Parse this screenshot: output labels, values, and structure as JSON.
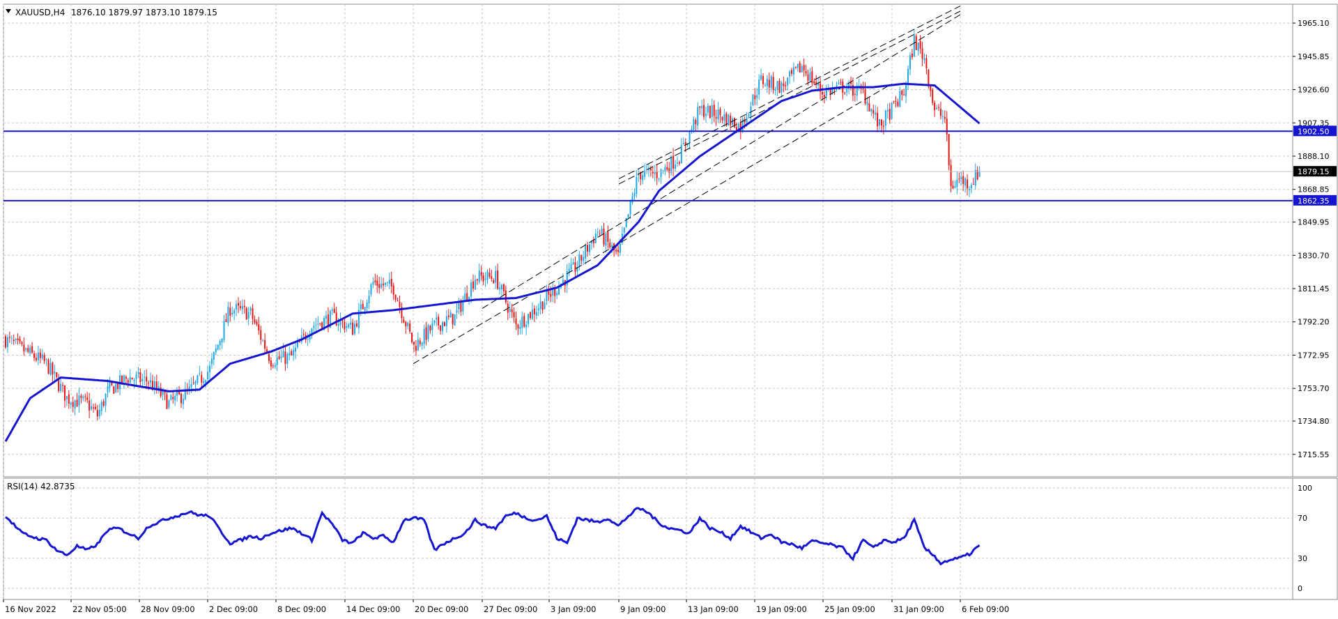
{
  "header": {
    "symbol_label": "XAUUSD,H4",
    "ohlc_label": "1876.10 1879.97 1873.10 1879.15"
  },
  "rsi_panel": {
    "label": "RSI(14) 42.8735"
  },
  "colors": {
    "bull": "#1ea7e8",
    "bear": "#ee1111",
    "ma": "#1515d0",
    "hline": "#1515d0",
    "grid": "#c7c7c7",
    "channel": "#000000"
  },
  "chart_data": [
    {
      "type": "candlestick",
      "symbol": "XAUUSD",
      "timeframe": "H4",
      "ylim": [
        1709.0,
        1972.0
      ],
      "y_ticks": [
        1965.1,
        1945.85,
        1926.6,
        1907.35,
        1888.1,
        1868.85,
        1849.95,
        1830.7,
        1811.45,
        1792.2,
        1772.95,
        1753.7,
        1734.8,
        1715.55
      ],
      "x_ticks": [
        "16 Nov 2022",
        "22 Nov 05:00",
        "28 Nov 09:00",
        "2 Dec 09:00",
        "8 Dec 09:00",
        "14 Dec 09:00",
        "20 Dec 09:00",
        "27 Dec 09:00",
        "3 Jan 09:00",
        "9 Jan 09:00",
        "13 Jan 09:00",
        "19 Jan 09:00",
        "25 Jan 09:00",
        "31 Jan 09:00",
        "6 Feb 09:00"
      ],
      "price_labels": {
        "current": 1879.15,
        "levels": [
          1902.5,
          1862.35
        ]
      },
      "horizontal_lines": [
        1902.5,
        1862.35
      ],
      "moving_average_anchors": [
        [
          0,
          1723
        ],
        [
          12,
          1748
        ],
        [
          27,
          1760
        ],
        [
          50,
          1758
        ],
        [
          80,
          1752
        ],
        [
          95,
          1753
        ],
        [
          110,
          1768
        ],
        [
          130,
          1775
        ],
        [
          145,
          1782
        ],
        [
          170,
          1797
        ],
        [
          190,
          1799
        ],
        [
          230,
          1805
        ],
        [
          250,
          1806
        ],
        [
          270,
          1812
        ],
        [
          290,
          1825
        ],
        [
          310,
          1850
        ],
        [
          320,
          1868
        ],
        [
          340,
          1888
        ],
        [
          360,
          1904
        ],
        [
          380,
          1920
        ],
        [
          395,
          1926
        ],
        [
          410,
          1928
        ],
        [
          425,
          1928
        ],
        [
          440,
          1930
        ],
        [
          455,
          1929
        ],
        [
          468,
          1916
        ],
        [
          477,
          1907
        ]
      ],
      "close_anchors": [
        [
          0,
          1782
        ],
        [
          10,
          1775
        ],
        [
          20,
          1768
        ],
        [
          30,
          1748
        ],
        [
          40,
          1745
        ],
        [
          45,
          1738
        ],
        [
          50,
          1752
        ],
        [
          60,
          1760
        ],
        [
          70,
          1758
        ],
        [
          80,
          1745
        ],
        [
          90,
          1752
        ],
        [
          100,
          1765
        ],
        [
          110,
          1800
        ],
        [
          120,
          1797
        ],
        [
          130,
          1770
        ],
        [
          140,
          1772
        ],
        [
          150,
          1790
        ],
        [
          160,
          1795
        ],
        [
          170,
          1788
        ],
        [
          180,
          1815
        ],
        [
          190,
          1812
        ],
        [
          200,
          1778
        ],
        [
          210,
          1790
        ],
        [
          220,
          1795
        ],
        [
          230,
          1818
        ],
        [
          240,
          1818
        ],
        [
          250,
          1790
        ],
        [
          260,
          1800
        ],
        [
          270,
          1812
        ],
        [
          280,
          1825
        ],
        [
          290,
          1845
        ],
        [
          300,
          1830
        ],
        [
          310,
          1878
        ],
        [
          320,
          1878
        ],
        [
          330,
          1888
        ],
        [
          340,
          1915
        ],
        [
          350,
          1912
        ],
        [
          360,
          1905
        ],
        [
          370,
          1932
        ],
        [
          380,
          1928
        ],
        [
          390,
          1940
        ],
        [
          400,
          1925
        ],
        [
          410,
          1928
        ],
        [
          420,
          1925
        ],
        [
          428,
          1905
        ],
        [
          440,
          1925
        ],
        [
          445,
          1955
        ],
        [
          450,
          1945
        ],
        [
          455,
          1915
        ],
        [
          460,
          1910
        ],
        [
          463,
          1870
        ],
        [
          467,
          1875
        ],
        [
          472,
          1872
        ],
        [
          477,
          1879.15
        ]
      ],
      "channel_lines": [
        {
          "from": [
            "20 Dec 09:00",
            1768
          ],
          "to": [
            "31 Jan 09:00",
            1930
          ]
        },
        {
          "from": [
            "27 Dec 09:00",
            1800
          ],
          "to": [
            "6 Feb 09:00",
            1970
          ]
        },
        {
          "from": [
            "9 Jan 09:00",
            1872
          ],
          "to": [
            "6 Feb 09:00",
            1972
          ]
        },
        {
          "from": [
            "9 Jan 09:00",
            1875
          ],
          "to": [
            "6 Feb 09:00",
            1975
          ]
        }
      ]
    },
    {
      "type": "line",
      "indicator": "RSI",
      "period": 14,
      "current_value": 42.8735,
      "ylim": [
        0,
        100
      ],
      "y_ticks": [
        100,
        70,
        30,
        0
      ],
      "series_anchors": [
        [
          0,
          72
        ],
        [
          8,
          55
        ],
        [
          15,
          50
        ],
        [
          20,
          48
        ],
        [
          25,
          38
        ],
        [
          30,
          33
        ],
        [
          35,
          42
        ],
        [
          40,
          38
        ],
        [
          45,
          44
        ],
        [
          50,
          58
        ],
        [
          55,
          60
        ],
        [
          60,
          55
        ],
        [
          65,
          50
        ],
        [
          70,
          62
        ],
        [
          80,
          70
        ],
        [
          90,
          76
        ],
        [
          95,
          73
        ],
        [
          100,
          72
        ],
        [
          105,
          58
        ],
        [
          110,
          45
        ],
        [
          115,
          48
        ],
        [
          120,
          52
        ],
        [
          125,
          50
        ],
        [
          130,
          55
        ],
        [
          140,
          60
        ],
        [
          145,
          55
        ],
        [
          150,
          48
        ],
        [
          155,
          75
        ],
        [
          160,
          64
        ],
        [
          165,
          48
        ],
        [
          170,
          45
        ],
        [
          175,
          55
        ],
        [
          180,
          50
        ],
        [
          185,
          52
        ],
        [
          190,
          46
        ],
        [
          195,
          68
        ],
        [
          200,
          70
        ],
        [
          205,
          68
        ],
        [
          210,
          38
        ],
        [
          215,
          45
        ],
        [
          220,
          50
        ],
        [
          225,
          55
        ],
        [
          230,
          68
        ],
        [
          235,
          62
        ],
        [
          240,
          60
        ],
        [
          245,
          72
        ],
        [
          250,
          75
        ],
        [
          255,
          70
        ],
        [
          260,
          68
        ],
        [
          265,
          72
        ],
        [
          270,
          50
        ],
        [
          275,
          45
        ],
        [
          280,
          70
        ],
        [
          285,
          68
        ],
        [
          290,
          66
        ],
        [
          295,
          70
        ],
        [
          300,
          62
        ],
        [
          305,
          72
        ],
        [
          310,
          80
        ],
        [
          315,
          75
        ],
        [
          320,
          65
        ],
        [
          325,
          60
        ],
        [
          330,
          58
        ],
        [
          335,
          55
        ],
        [
          340,
          70
        ],
        [
          345,
          60
        ],
        [
          350,
          56
        ],
        [
          355,
          50
        ],
        [
          360,
          62
        ],
        [
          365,
          56
        ],
        [
          370,
          50
        ],
        [
          375,
          54
        ],
        [
          380,
          46
        ],
        [
          385,
          44
        ],
        [
          390,
          40
        ],
        [
          395,
          47
        ],
        [
          400,
          45
        ],
        [
          405,
          43
        ],
        [
          410,
          40
        ],
        [
          415,
          30
        ],
        [
          420,
          48
        ],
        [
          425,
          40
        ],
        [
          430,
          48
        ],
        [
          435,
          46
        ],
        [
          440,
          50
        ],
        [
          445,
          68
        ],
        [
          450,
          40
        ],
        [
          455,
          32
        ],
        [
          458,
          25
        ],
        [
          462,
          28
        ],
        [
          467,
          30
        ],
        [
          472,
          34
        ],
        [
          477,
          43
        ]
      ]
    }
  ]
}
